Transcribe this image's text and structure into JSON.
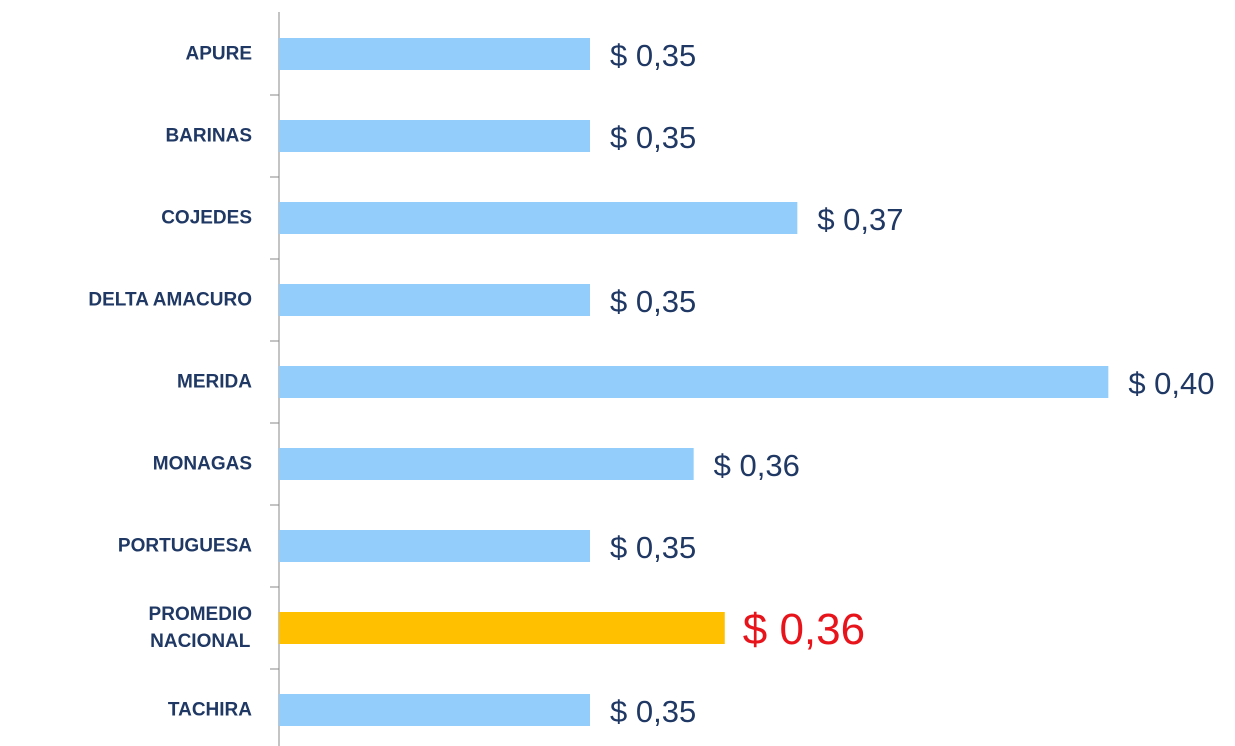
{
  "chart_data": {
    "type": "hbar",
    "categories": [
      "APURE",
      "BARINAS",
      "COJEDES",
      "DELTA AMACURO",
      "MERIDA",
      "MONAGAS",
      "PORTUGUESA",
      "PROMEDIO\nNACIONAL",
      "TACHIRA"
    ],
    "values": [
      0.35,
      0.35,
      0.37,
      0.35,
      0.4,
      0.36,
      0.35,
      0.363,
      0.35
    ],
    "value_labels": [
      "$ 0,35",
      "$ 0,35",
      "$ 0,37",
      "$ 0,35",
      "$ 0,40",
      "$ 0,36",
      "$ 0,35",
      "$ 0,36",
      "$ 0,35"
    ],
    "colors": [
      "#93cdfb",
      "#93cdfb",
      "#93cdfb",
      "#93cdfb",
      "#93cdfb",
      "#93cdfb",
      "#93cdfb",
      "#ffc000",
      "#93cdfb"
    ],
    "value_label_colors": [
      "#1f3864",
      "#1f3864",
      "#1f3864",
      "#1f3864",
      "#1f3864",
      "#1f3864",
      "#1f3864",
      "#e8141c",
      "#1f3864"
    ],
    "xlim": [
      0.32,
      0.41
    ]
  }
}
